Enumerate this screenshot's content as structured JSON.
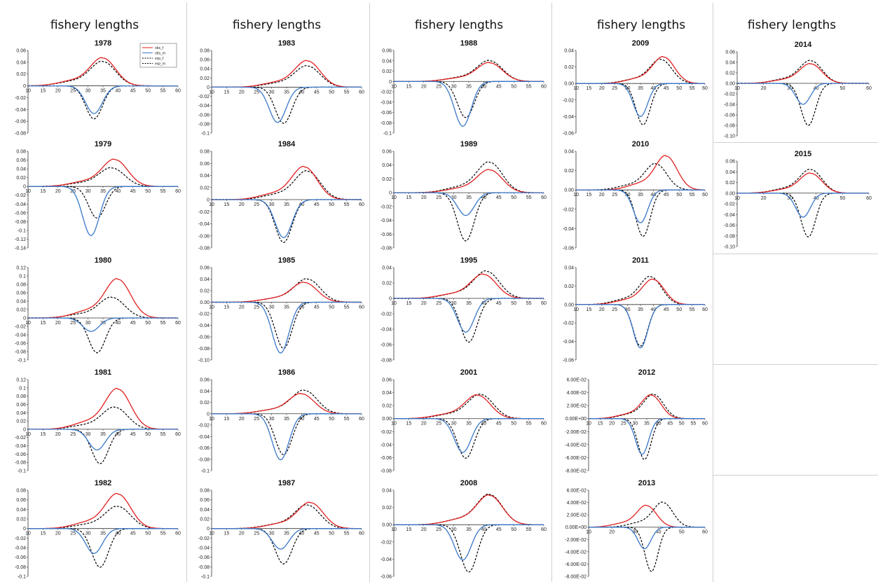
{
  "headers": [
    "fishery lengths",
    "fishery lengths",
    "fishery lengths",
    "fishery lengths",
    "fishery lengths"
  ],
  "legend": [
    {
      "label": "obs_f",
      "color": "#e02020",
      "dash": false
    },
    {
      "label": "obs_m",
      "color": "#3a78c9",
      "dash": false
    },
    {
      "label": "exp_f",
      "color": "#000000",
      "dash": true
    },
    {
      "label": "exp_m",
      "color": "#000000",
      "dash": true
    }
  ],
  "colors": {
    "female": "#e02020",
    "male": "#3a78c9",
    "expected": "#000000",
    "axis": "#333333"
  },
  "chart_data": [
    {
      "type": "line",
      "title": "1978",
      "col": 0,
      "row": 0,
      "ylim": [
        -0.08,
        0.06
      ],
      "yticks": [
        "0.06",
        "0.04",
        "0.02",
        "0",
        "-0.02",
        "-0.04",
        "-0.06",
        "-0.08"
      ],
      "xticks": [
        10,
        15,
        20,
        25,
        30,
        35,
        40,
        45,
        50,
        55,
        60
      ],
      "legend": true,
      "series": [
        {
          "name": "obs_f",
          "peak": 0.047,
          "center": 35
        },
        {
          "name": "obs_m",
          "peak": -0.047,
          "center": 32
        },
        {
          "name": "exp_f",
          "peak": 0.041,
          "center": 35
        },
        {
          "name": "exp_m",
          "peak": -0.056,
          "center": 32
        }
      ]
    },
    {
      "type": "line",
      "title": "1979",
      "col": 0,
      "row": 1,
      "ylim": [
        -0.14,
        0.08
      ],
      "yticks": [
        "0.08",
        "0.06",
        "0.04",
        "0.02",
        "0",
        "-0.02",
        "-0.04",
        "-0.06",
        "-0.08",
        "-0.1",
        "-0.12",
        "-0.14"
      ],
      "xticks": [
        10,
        15,
        20,
        25,
        30,
        35,
        40,
        45,
        50,
        55,
        60
      ],
      "series": [
        {
          "name": "obs_f",
          "peak": 0.061,
          "center": 39
        },
        {
          "name": "obs_m",
          "peak": -0.112,
          "center": 31
        },
        {
          "name": "exp_f",
          "peak": 0.042,
          "center": 38
        },
        {
          "name": "exp_m",
          "peak": -0.072,
          "center": 33
        }
      ]
    },
    {
      "type": "line",
      "title": "1980",
      "col": 0,
      "row": 2,
      "ylim": [
        -0.1,
        0.12
      ],
      "yticks": [
        "0.12",
        "0.1",
        "0.08",
        "0.06",
        "0.04",
        "0.02",
        "0",
        "-0.02",
        "-0.04",
        "-0.06",
        "-0.08",
        "-0.1"
      ],
      "xticks": [
        10,
        15,
        20,
        25,
        30,
        35,
        40,
        45,
        50,
        55,
        60
      ],
      "series": [
        {
          "name": "obs_f",
          "peak": 0.092,
          "center": 40
        },
        {
          "name": "obs_m",
          "peak": -0.032,
          "center": 31
        },
        {
          "name": "exp_f",
          "peak": 0.049,
          "center": 38
        },
        {
          "name": "exp_m",
          "peak": -0.083,
          "center": 33
        }
      ]
    },
    {
      "type": "line",
      "title": "1981",
      "col": 0,
      "row": 3,
      "ylim": [
        -0.1,
        0.12
      ],
      "yticks": [
        "0.12",
        "0.1",
        "0.08",
        "0.06",
        "0.04",
        "0.02",
        "0",
        "-0.02",
        "-0.04",
        "-0.06",
        "-0.08",
        "-0.1"
      ],
      "xticks": [
        10,
        15,
        20,
        25,
        30,
        35,
        40,
        45,
        50,
        55,
        60
      ],
      "series": [
        {
          "name": "obs_f",
          "peak": 0.097,
          "center": 40
        },
        {
          "name": "obs_m",
          "peak": -0.05,
          "center": 33
        },
        {
          "name": "exp_f",
          "peak": 0.053,
          "center": 39
        },
        {
          "name": "exp_m",
          "peak": -0.083,
          "center": 34
        }
      ]
    },
    {
      "type": "line",
      "title": "1982",
      "col": 0,
      "row": 4,
      "ylim": [
        -0.1,
        0.08
      ],
      "yticks": [
        "0.08",
        "0.06",
        "0.04",
        "0.02",
        "0",
        "-0.02",
        "-0.04",
        "-0.06",
        "-0.08",
        "-0.1"
      ],
      "xticks": [
        10,
        15,
        20,
        25,
        30,
        35,
        40,
        45,
        50,
        55,
        60
      ],
      "series": [
        {
          "name": "obs_f",
          "peak": 0.072,
          "center": 40
        },
        {
          "name": "obs_m",
          "peak": -0.052,
          "center": 32
        },
        {
          "name": "exp_f",
          "peak": 0.046,
          "center": 40
        },
        {
          "name": "exp_m",
          "peak": -0.081,
          "center": 34
        }
      ]
    },
    {
      "type": "line",
      "title": "1983",
      "col": 1,
      "row": 0,
      "ylim": [
        -0.1,
        0.08
      ],
      "yticks": [
        "0.08",
        "0.06",
        "0.04",
        "0.02",
        "0",
        "-0.02",
        "-0.04",
        "-0.06",
        "-0.08",
        "-0.1"
      ],
      "xticks": [
        10,
        15,
        20,
        25,
        30,
        35,
        40,
        45,
        50,
        55,
        60
      ],
      "series": [
        {
          "name": "obs_f",
          "peak": 0.057,
          "center": 42
        },
        {
          "name": "obs_m",
          "peak": -0.077,
          "center": 32
        },
        {
          "name": "exp_f",
          "peak": 0.046,
          "center": 42
        },
        {
          "name": "exp_m",
          "peak": -0.079,
          "center": 34
        }
      ]
    },
    {
      "type": "line",
      "title": "1984",
      "col": 1,
      "row": 1,
      "ylim": [
        -0.08,
        0.08
      ],
      "yticks": [
        "0.08",
        "0.06",
        "0.04",
        "0.02",
        "0",
        "-0.02",
        "-0.04",
        "-0.06",
        "-0.08"
      ],
      "xticks": [
        10,
        15,
        20,
        25,
        30,
        35,
        40,
        45,
        50,
        55,
        60
      ],
      "series": [
        {
          "name": "obs_f",
          "peak": 0.054,
          "center": 41
        },
        {
          "name": "obs_m",
          "peak": -0.063,
          "center": 34
        },
        {
          "name": "exp_f",
          "peak": 0.047,
          "center": 42
        },
        {
          "name": "exp_m",
          "peak": -0.071,
          "center": 34
        }
      ]
    },
    {
      "type": "line",
      "title": "1985",
      "col": 1,
      "row": 2,
      "ylim": [
        -0.1,
        0.06
      ],
      "yticks": [
        "0.06",
        "0.04",
        "0.02",
        "0.00",
        "-0.02",
        "-0.04",
        "-0.06",
        "-0.08",
        "-0.10"
      ],
      "xticks": [
        10,
        15,
        20,
        25,
        30,
        35,
        40,
        45,
        50,
        55,
        60
      ],
      "series": [
        {
          "name": "obs_f",
          "peak": 0.034,
          "center": 41
        },
        {
          "name": "obs_m",
          "peak": -0.088,
          "center": 33
        },
        {
          "name": "exp_f",
          "peak": 0.04,
          "center": 42
        },
        {
          "name": "exp_m",
          "peak": -0.08,
          "center": 34
        }
      ]
    },
    {
      "type": "line",
      "title": "1986",
      "col": 1,
      "row": 3,
      "ylim": [
        -0.1,
        0.06
      ],
      "yticks": [
        "0.06",
        "0.04",
        "0.02",
        "0",
        "-0.02",
        "-0.04",
        "-0.06",
        "-0.08",
        "-0.1"
      ],
      "xticks": [
        10,
        15,
        20,
        25,
        30,
        35,
        40,
        45,
        50,
        55,
        60
      ],
      "series": [
        {
          "name": "obs_f",
          "peak": 0.035,
          "center": 40
        },
        {
          "name": "obs_m",
          "peak": -0.081,
          "center": 33
        },
        {
          "name": "exp_f",
          "peak": 0.041,
          "center": 41
        },
        {
          "name": "exp_m",
          "peak": -0.072,
          "center": 34
        }
      ]
    },
    {
      "type": "line",
      "title": "1987",
      "col": 1,
      "row": 4,
      "ylim": [
        -0.1,
        0.08
      ],
      "yticks": [
        "0.08",
        "0.06",
        "0.04",
        "0.02",
        "0",
        "-0.02",
        "-0.04",
        "-0.06",
        "-0.08",
        "-0.1"
      ],
      "xticks": [
        10,
        15,
        20,
        25,
        30,
        35,
        40,
        45,
        50,
        55,
        60
      ],
      "series": [
        {
          "name": "obs_f",
          "peak": 0.054,
          "center": 43
        },
        {
          "name": "obs_m",
          "peak": -0.043,
          "center": 33
        },
        {
          "name": "exp_f",
          "peak": 0.049,
          "center": 42
        },
        {
          "name": "exp_m",
          "peak": -0.074,
          "center": 34
        }
      ]
    },
    {
      "type": "line",
      "title": "1988",
      "col": 2,
      "row": 0,
      "ylim": [
        -0.1,
        0.06
      ],
      "yticks": [
        "0.06",
        "0.04",
        "0.02",
        "0",
        "-0.02",
        "-0.04",
        "-0.06",
        "-0.08",
        "-0.1"
      ],
      "xticks": [
        10,
        15,
        20,
        25,
        30,
        35,
        40,
        45,
        50,
        55,
        60
      ],
      "series": [
        {
          "name": "obs_f",
          "peak": 0.036,
          "center": 42
        },
        {
          "name": "obs_m",
          "peak": -0.087,
          "center": 33
        },
        {
          "name": "exp_f",
          "peak": 0.04,
          "center": 42
        },
        {
          "name": "exp_m",
          "peak": -0.07,
          "center": 34
        }
      ]
    },
    {
      "type": "line",
      "title": "1989",
      "col": 2,
      "row": 1,
      "ylim": [
        -0.08,
        0.06
      ],
      "yticks": [
        "0.06",
        "0.04",
        "0.02",
        "0",
        "-0.02",
        "-0.04",
        "-0.06",
        "-0.08"
      ],
      "xticks": [
        10,
        15,
        20,
        25,
        30,
        35,
        40,
        45,
        50,
        55,
        60
      ],
      "series": [
        {
          "name": "obs_f",
          "peak": 0.033,
          "center": 42
        },
        {
          "name": "obs_m",
          "peak": -0.033,
          "center": 34
        },
        {
          "name": "exp_f",
          "peak": 0.044,
          "center": 42
        },
        {
          "name": "exp_m",
          "peak": -0.07,
          "center": 34
        }
      ]
    },
    {
      "type": "line",
      "title": "1995",
      "col": 2,
      "row": 2,
      "ylim": [
        -0.08,
        0.04
      ],
      "yticks": [
        "0.04",
        "0.02",
        "0",
        "-0.02",
        "-0.04",
        "-0.06",
        "-0.08"
      ],
      "xticks": [
        10,
        15,
        20,
        25,
        30,
        35,
        40,
        45,
        50,
        55,
        60
      ],
      "series": [
        {
          "name": "obs_f",
          "peak": 0.031,
          "center": 40
        },
        {
          "name": "obs_m",
          "peak": -0.044,
          "center": 34
        },
        {
          "name": "exp_f",
          "peak": 0.035,
          "center": 41
        },
        {
          "name": "exp_m",
          "peak": -0.057,
          "center": 35
        }
      ]
    },
    {
      "type": "line",
      "title": "2001",
      "col": 2,
      "row": 3,
      "ylim": [
        -0.08,
        0.06
      ],
      "yticks": [
        "0.06",
        "0.04",
        "0.02",
        "0.00",
        "-0.02",
        "-0.04",
        "-0.06",
        "-0.08"
      ],
      "xticks": [
        10,
        15,
        20,
        25,
        30,
        35,
        40,
        45,
        50,
        55,
        60
      ],
      "series": [
        {
          "name": "obs_f",
          "peak": 0.036,
          "center": 38
        },
        {
          "name": "obs_m",
          "peak": -0.052,
          "center": 33
        },
        {
          "name": "exp_f",
          "peak": 0.037,
          "center": 39
        },
        {
          "name": "exp_m",
          "peak": -0.061,
          "center": 34
        }
      ]
    },
    {
      "type": "line",
      "title": "2008",
      "col": 2,
      "row": 4,
      "ylim": [
        -0.06,
        0.04
      ],
      "yticks": [
        "0.04",
        "0.02",
        "0.00",
        "-0.02",
        "-0.04",
        "-0.06"
      ],
      "xticks": [
        10,
        15,
        20,
        25,
        30,
        35,
        40,
        45,
        50,
        55,
        60
      ],
      "series": [
        {
          "name": "obs_f",
          "peak": 0.034,
          "center": 42
        },
        {
          "name": "obs_m",
          "peak": -0.041,
          "center": 33
        },
        {
          "name": "exp_f",
          "peak": 0.035,
          "center": 42
        },
        {
          "name": "exp_m",
          "peak": -0.055,
          "center": 35
        }
      ]
    },
    {
      "type": "line",
      "title": "2009",
      "col": 3,
      "row": 0,
      "ylim": [
        -0.06,
        0.04
      ],
      "yticks": [
        "0.04",
        "0.02",
        "0.00",
        "-0.02",
        "-0.04",
        "-0.06"
      ],
      "xticks": [
        10,
        15,
        20,
        25,
        30,
        35,
        40,
        45,
        50,
        55,
        60
      ],
      "series": [
        {
          "name": "obs_f",
          "peak": 0.032,
          "center": 44
        },
        {
          "name": "obs_m",
          "peak": -0.04,
          "center": 35
        },
        {
          "name": "exp_f",
          "peak": 0.029,
          "center": 43
        },
        {
          "name": "exp_m",
          "peak": -0.05,
          "center": 36
        }
      ]
    },
    {
      "type": "line",
      "title": "2010",
      "col": 3,
      "row": 1,
      "ylim": [
        -0.06,
        0.04
      ],
      "yticks": [
        "0.04",
        "0.02",
        "0.00",
        "-0.02",
        "-0.04",
        "-0.06"
      ],
      "xticks": [
        10,
        15,
        20,
        25,
        30,
        35,
        40,
        45,
        50,
        55,
        60
      ],
      "series": [
        {
          "name": "obs_f",
          "peak": 0.035,
          "center": 45
        },
        {
          "name": "obs_m",
          "peak": -0.034,
          "center": 35
        },
        {
          "name": "exp_f",
          "peak": 0.027,
          "center": 41
        },
        {
          "name": "exp_m",
          "peak": -0.048,
          "center": 36
        }
      ]
    },
    {
      "type": "line",
      "title": "2011",
      "col": 3,
      "row": 2,
      "ylim": [
        -0.06,
        0.04
      ],
      "yticks": [
        "0.04",
        "0.02",
        "0.00",
        "-0.02",
        "-0.04",
        "-0.06"
      ],
      "xticks": [
        10,
        15,
        20,
        25,
        30,
        35,
        40,
        45,
        50,
        55,
        60
      ],
      "series": [
        {
          "name": "obs_f",
          "peak": 0.027,
          "center": 40
        },
        {
          "name": "obs_m",
          "peak": -0.047,
          "center": 35
        },
        {
          "name": "exp_f",
          "peak": 0.03,
          "center": 39
        },
        {
          "name": "exp_m",
          "peak": -0.045,
          "center": 35
        }
      ]
    },
    {
      "type": "line",
      "title": "2012",
      "col": 3,
      "row": 3,
      "ylim": [
        -0.08,
        0.06
      ],
      "yticks": [
        "6.00E-02",
        "4.00E-02",
        "2.00E-02",
        "0.00E+00",
        "-2.00E-02",
        "-4.00E-02",
        "-6.00E-02",
        "-8.00E-02"
      ],
      "xticks": [
        10,
        15,
        20,
        25,
        30,
        35,
        40,
        45,
        50,
        55,
        60
      ],
      "series": [
        {
          "name": "obs_f",
          "peak": 0.036,
          "center": 37
        },
        {
          "name": "obs_m",
          "peak": -0.055,
          "center": 33
        },
        {
          "name": "exp_f",
          "peak": 0.037,
          "center": 38
        },
        {
          "name": "exp_m",
          "peak": -0.063,
          "center": 34
        }
      ]
    },
    {
      "type": "line",
      "title": "2013",
      "col": 3,
      "row": 4,
      "ylim": [
        -0.08,
        0.06
      ],
      "yticks": [
        "6.00E-02",
        "4.00E-02",
        "2.00E-02",
        "0.00E+00",
        "-2.00E-02",
        "-4.00E-02",
        "-6.00E-02",
        "-8.00E-02"
      ],
      "xticks": [
        10,
        20,
        30,
        40,
        50,
        60
      ],
      "series": [
        {
          "name": "obs_f",
          "peak": 0.035,
          "center": 35
        },
        {
          "name": "obs_m",
          "peak": -0.035,
          "center": 34
        },
        {
          "name": "exp_f",
          "peak": 0.04,
          "center": 42
        },
        {
          "name": "exp_m",
          "peak": -0.072,
          "center": 37
        }
      ]
    },
    {
      "type": "line",
      "title": "2014",
      "col": 4,
      "row": 0,
      "ylim": [
        -0.1,
        0.06
      ],
      "yticks": [
        "0.06",
        "0.04",
        "0.02",
        "0.00",
        "-0.02",
        "-0.04",
        "-0.06",
        "-0.08",
        "-0.10"
      ],
      "xticks": [
        10,
        20,
        30,
        40,
        50,
        60
      ],
      "series": [
        {
          "name": "obs_f",
          "peak": 0.037,
          "center": 38
        },
        {
          "name": "obs_m",
          "peak": -0.04,
          "center": 35
        },
        {
          "name": "exp_f",
          "peak": 0.043,
          "center": 38
        },
        {
          "name": "exp_m",
          "peak": -0.08,
          "center": 37
        }
      ]
    },
    {
      "type": "line",
      "title": "2015",
      "col": 4,
      "row": 1,
      "ylim": [
        -0.1,
        0.06
      ],
      "yticks": [
        "0.06",
        "0.04",
        "0.02",
        "0.00",
        "-0.02",
        "-0.04",
        "-0.06",
        "-0.08",
        "-0.10"
      ],
      "xticks": [
        10,
        20,
        30,
        40,
        50,
        60
      ],
      "series": [
        {
          "name": "obs_f",
          "peak": 0.037,
          "center": 38
        },
        {
          "name": "obs_m",
          "peak": -0.045,
          "center": 35
        },
        {
          "name": "exp_f",
          "peak": 0.044,
          "center": 38
        },
        {
          "name": "exp_m",
          "peak": -0.082,
          "center": 37
        }
      ]
    }
  ]
}
